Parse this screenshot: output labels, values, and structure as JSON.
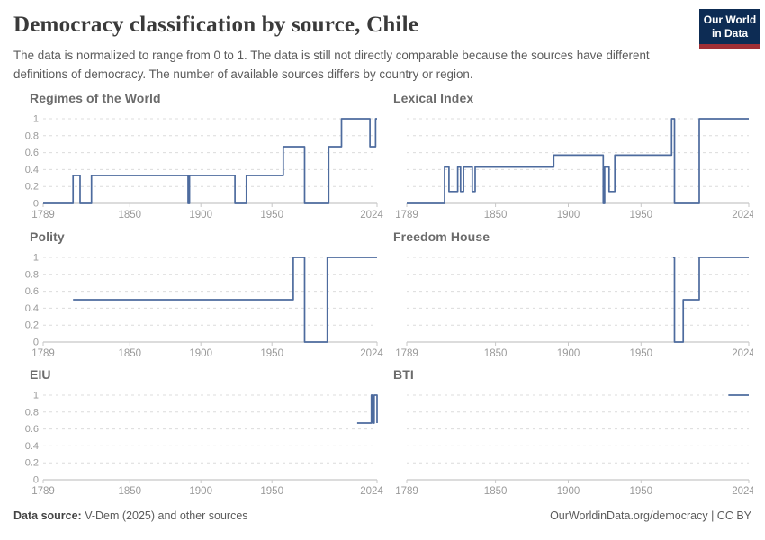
{
  "header": {
    "title": "Democracy classification by source, Chile",
    "subtitle": "The data is normalized to range from 0 to 1. The data is still not directly comparable because the sources have different definitions of democracy. The number of available sources differs by country or region.",
    "logo": {
      "line1": "Our World",
      "line2": "in Data"
    }
  },
  "footer": {
    "datasource_label": "Data source:",
    "datasource_value": " V-Dem (2025) and other sources",
    "credit": "OurWorldinData.org/democracy | CC BY"
  },
  "colors": {
    "line": "#4d6b9e",
    "grid": "#dcdcdc",
    "axis": "#c8c8c8",
    "tick_label": "#9a9a9a",
    "panel_title": "#6b6b6b",
    "title": "#3a3a3a",
    "subtitle": "#5b5b5b",
    "logo_bg": "#0d2c54",
    "logo_accent": "#a02f35"
  },
  "chart_data": {
    "type": "line",
    "step": "after",
    "country": "Chile",
    "xlim": [
      1789,
      2024
    ],
    "ylim": [
      0,
      1
    ],
    "x_ticks": [
      1789,
      1850,
      1900,
      1950,
      2024
    ],
    "y_ticks": [
      0,
      0.2,
      0.4,
      0.6,
      0.8,
      1
    ],
    "grid": "dashed-horizontal",
    "legend": "none",
    "panels": [
      {
        "title": "Regimes of the World",
        "y_axis_labels": true,
        "points": [
          [
            1789,
            0
          ],
          [
            1810,
            0.33
          ],
          [
            1815,
            0
          ],
          [
            1823,
            0.33
          ],
          [
            1891,
            0
          ],
          [
            1892,
            0.33
          ],
          [
            1924,
            0
          ],
          [
            1932,
            0.33
          ],
          [
            1958,
            0.67
          ],
          [
            1973,
            0
          ],
          [
            1990,
            0.67
          ],
          [
            1999,
            1
          ],
          [
            2019,
            0.67
          ],
          [
            2023,
            1
          ],
          [
            2024,
            1
          ]
        ]
      },
      {
        "title": "Lexical Index",
        "y_axis_labels": false,
        "points": [
          [
            1789,
            0
          ],
          [
            1815,
            0.43
          ],
          [
            1818,
            0.14
          ],
          [
            1824,
            0.43
          ],
          [
            1826,
            0.14
          ],
          [
            1828,
            0.43
          ],
          [
            1834,
            0.14
          ],
          [
            1836,
            0.43
          ],
          [
            1890,
            0.57
          ],
          [
            1924,
            0
          ],
          [
            1925,
            0.43
          ],
          [
            1928,
            0.14
          ],
          [
            1932,
            0.57
          ],
          [
            1971,
            1
          ],
          [
            1973,
            0
          ],
          [
            1990,
            1
          ],
          [
            2024,
            1
          ]
        ]
      },
      {
        "title": "Polity",
        "y_axis_labels": true,
        "points": [
          [
            1810,
            0.5
          ],
          [
            1965,
            1
          ],
          [
            1973,
            0
          ],
          [
            1989,
            1
          ],
          [
            2024,
            1
          ]
        ]
      },
      {
        "title": "Freedom House",
        "y_axis_labels": false,
        "points": [
          [
            1972,
            1
          ],
          [
            1973,
            0
          ],
          [
            1979,
            0.5
          ],
          [
            1990,
            1
          ],
          [
            2024,
            1
          ]
        ]
      },
      {
        "title": "EIU",
        "y_axis_labels": true,
        "points": [
          [
            2010,
            0.67
          ],
          [
            2020,
            1
          ],
          [
            2021,
            0.67
          ],
          [
            2022,
            1
          ],
          [
            2024,
            0.67
          ]
        ]
      },
      {
        "title": "BTI",
        "y_axis_labels": false,
        "points": [
          [
            2010,
            1
          ],
          [
            2024,
            1
          ]
        ]
      }
    ]
  }
}
